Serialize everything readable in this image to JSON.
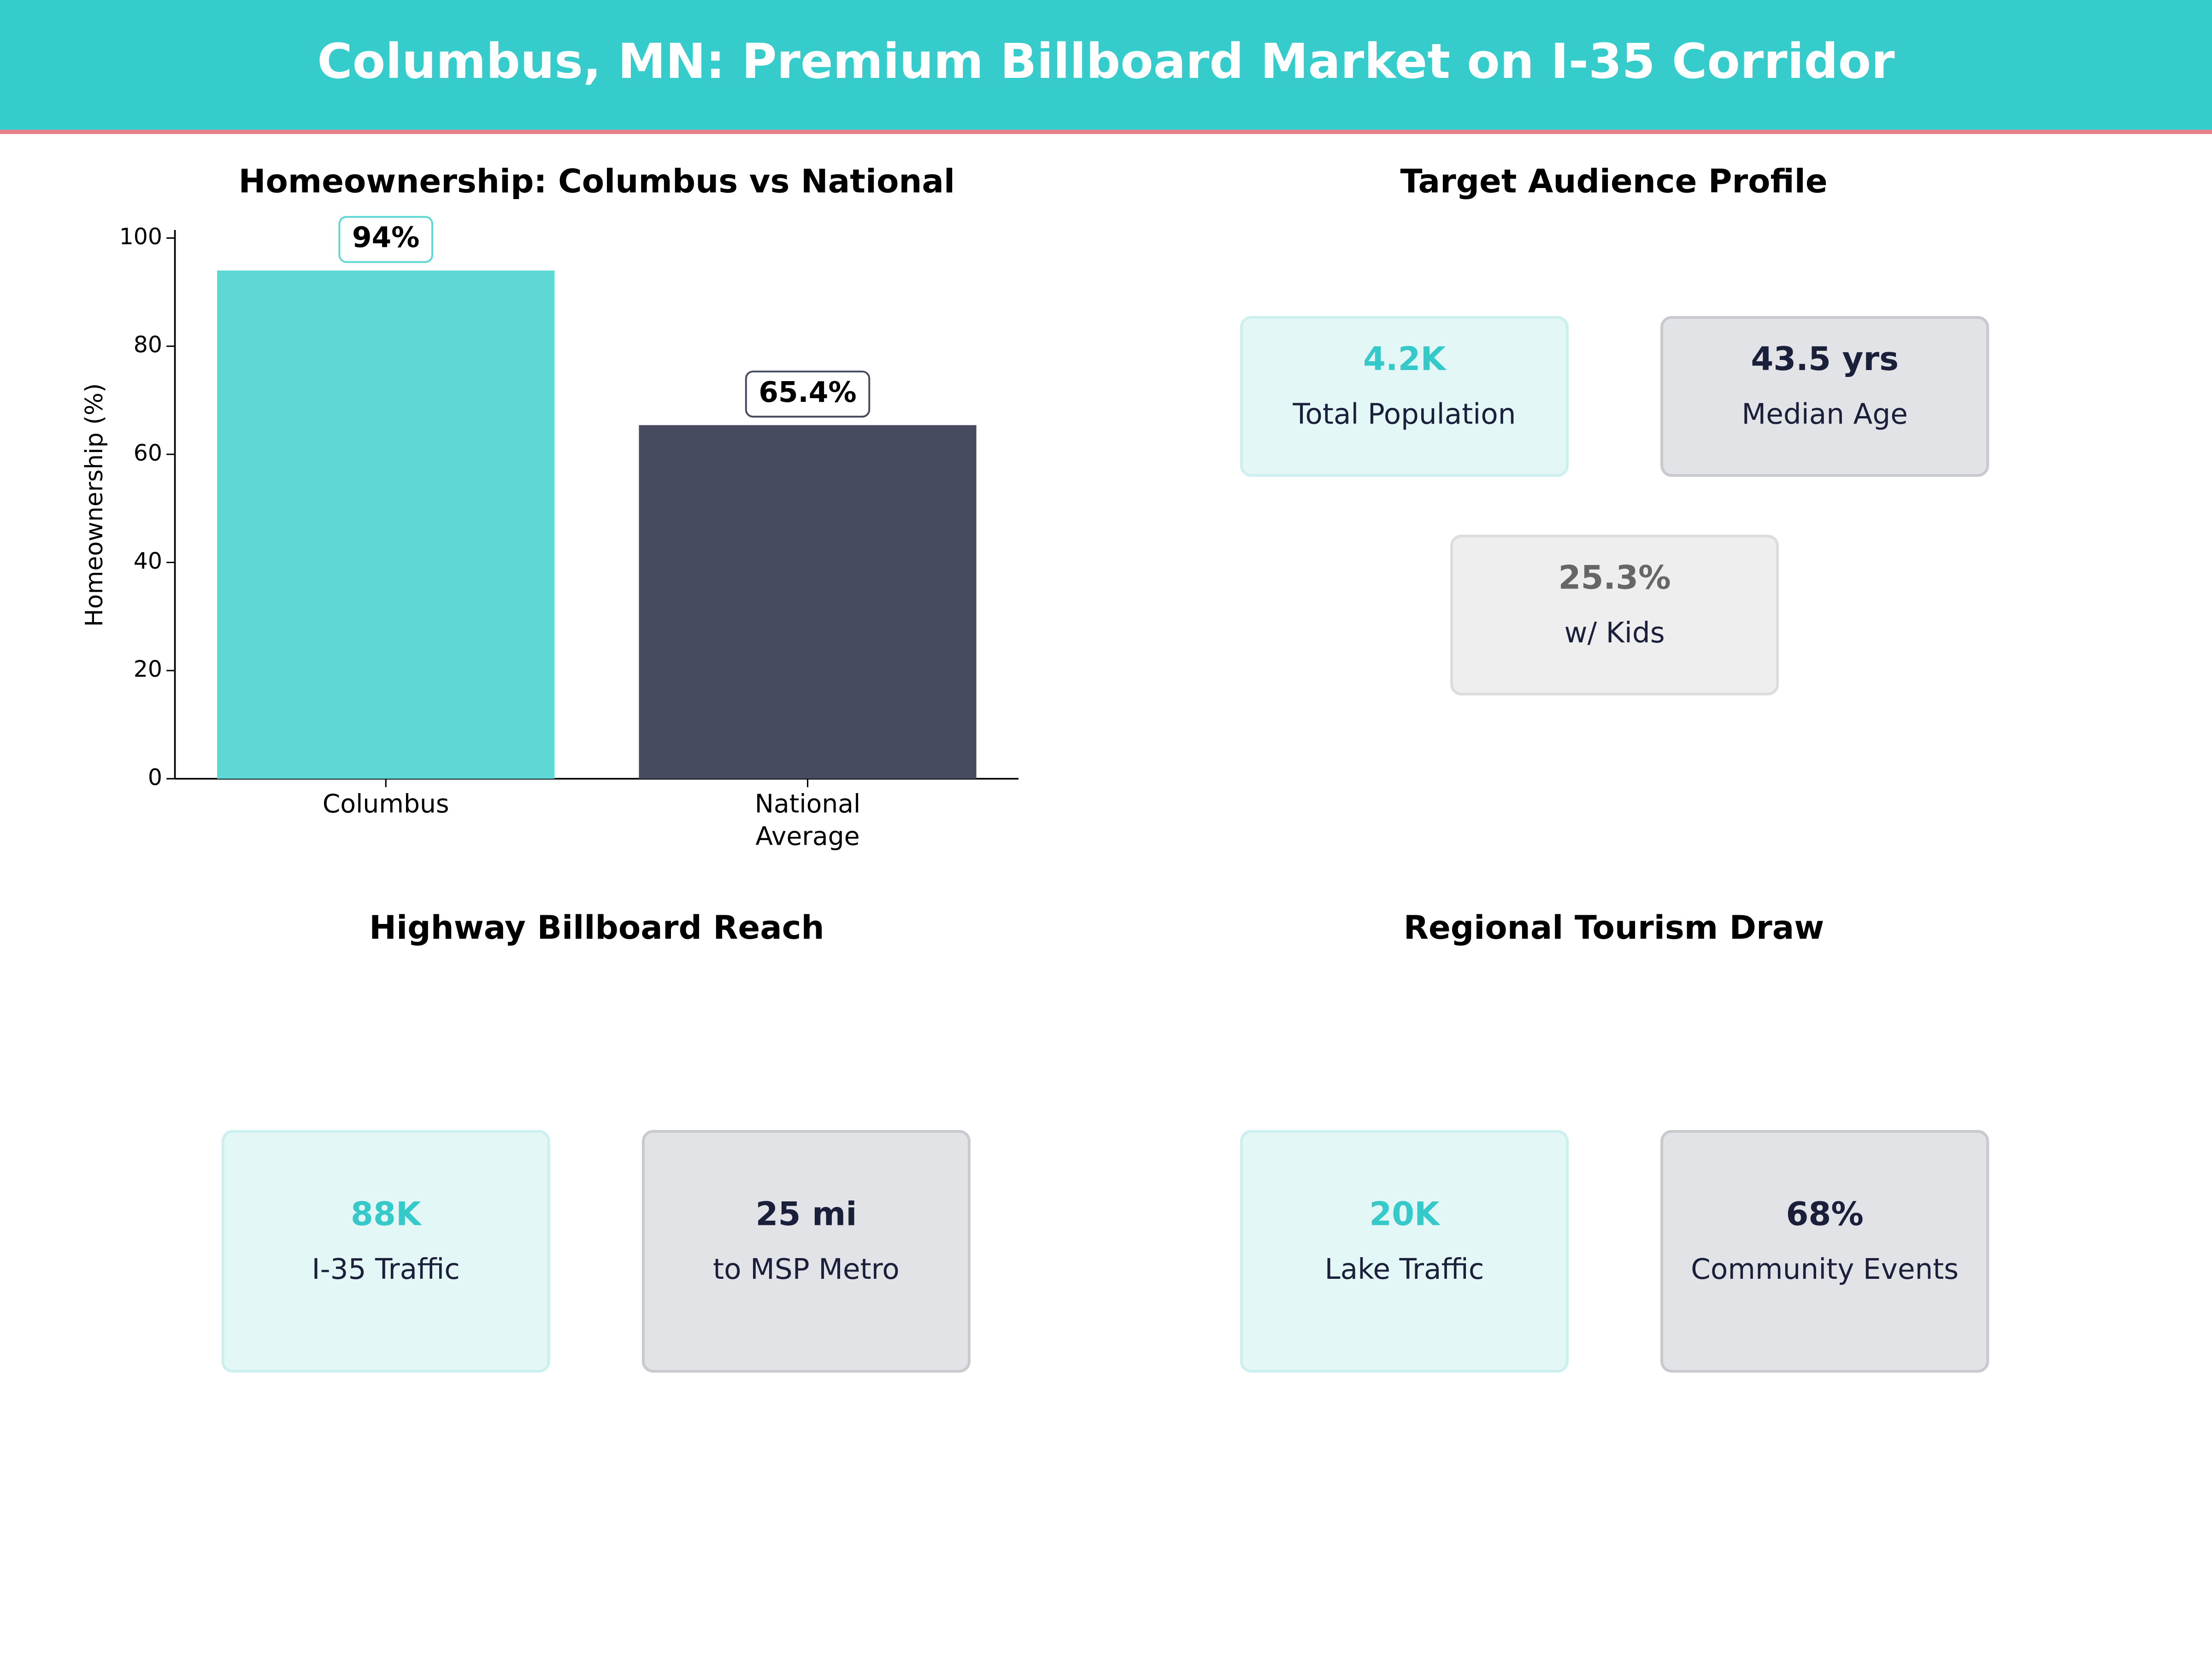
{
  "header": {
    "title": "Columbus, MN: Premium Billboard Market on I-35 Corridor"
  },
  "chart_data": {
    "type": "bar",
    "title": "Homeownership: Columbus vs National",
    "y_label": "Homeownership (%)",
    "categories": [
      "Columbus",
      "National\nAverage"
    ],
    "values": [
      94,
      65.4
    ],
    "value_labels": [
      "94%",
      "65.4%"
    ],
    "colors": [
      "#5dd8d4",
      "#474b60"
    ],
    "ylim": [
      0,
      101.5
    ],
    "yticks": [
      0,
      20,
      40,
      60,
      80,
      100
    ]
  },
  "audience": {
    "title": "Target Audience Profile",
    "cards": [
      {
        "value": "4.2K",
        "label": "Total Population"
      },
      {
        "value": "43.5 yrs",
        "label": "Median Age"
      },
      {
        "value": "25.3%",
        "label": "w/ Kids"
      }
    ]
  },
  "highway": {
    "title": "Highway Billboard Reach",
    "cards": [
      {
        "value": "88K",
        "label": "I-35 Traffic"
      },
      {
        "value": "25 mi",
        "label": "to MSP Metro"
      }
    ]
  },
  "tourism": {
    "title": "Regional Tourism Draw",
    "cards": [
      {
        "value": "20K",
        "label": "Lake Traffic"
      },
      {
        "value": "68%",
        "label": "Community Events"
      }
    ]
  }
}
